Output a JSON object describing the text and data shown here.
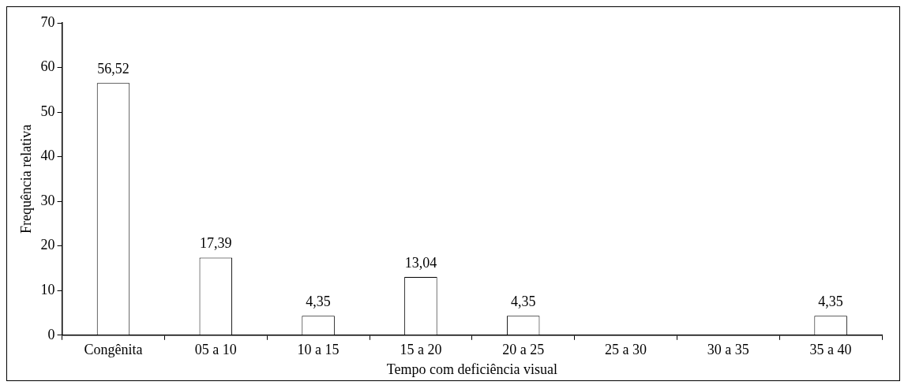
{
  "chart_data": {
    "type": "bar",
    "xlabel": "Tempo com deficiência visual",
    "ylabel": "Frequência relativa",
    "categories": [
      "Congênita",
      "05 a 10",
      "10 a 15",
      "15 a 20",
      "20 a 25",
      "25 a 30",
      "30 a 35",
      "35 a 40"
    ],
    "values": [
      56.52,
      17.39,
      4.35,
      13.04,
      4.35,
      0,
      0,
      4.35
    ],
    "value_labels": [
      "56,52",
      "17,39",
      "4,35",
      "13,04",
      "4,35",
      null,
      null,
      "4,35"
    ],
    "color": "#ffffff",
    "ylim": [
      0,
      70
    ],
    "yticks": [
      0,
      10,
      20,
      30,
      40,
      50,
      60,
      70
    ],
    "grid": false,
    "legend": false
  }
}
